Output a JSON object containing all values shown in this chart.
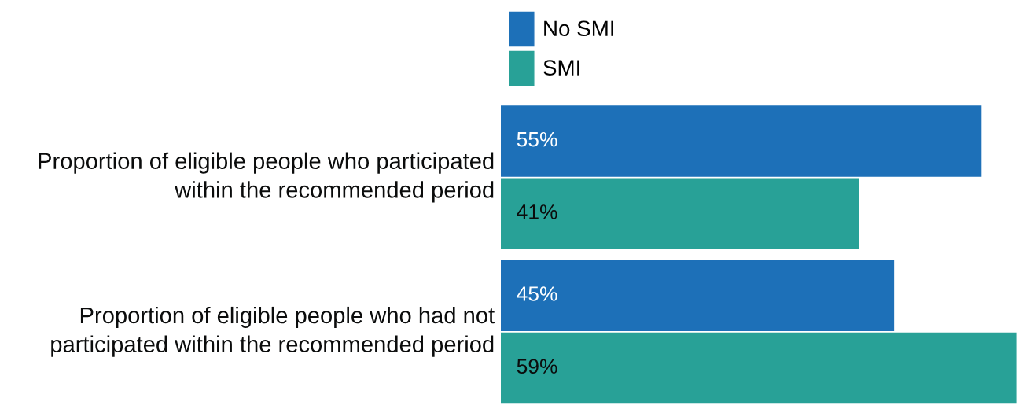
{
  "chart_data": {
    "type": "bar",
    "orientation": "horizontal",
    "categories": [
      "Proportion of eligible people who participated within the recommended period",
      "Proportion of eligible people who had not participated within the recommended period"
    ],
    "series": [
      {
        "name": "No SMI",
        "color": "#1d70b8",
        "values": [
          55,
          45
        ],
        "value_labels": [
          "55%",
          "45%"
        ]
      },
      {
        "name": "SMI",
        "color": "#28a197",
        "values": [
          41,
          59
        ],
        "value_labels": [
          "41%",
          "59%"
        ]
      }
    ],
    "legend": "top left"
  }
}
